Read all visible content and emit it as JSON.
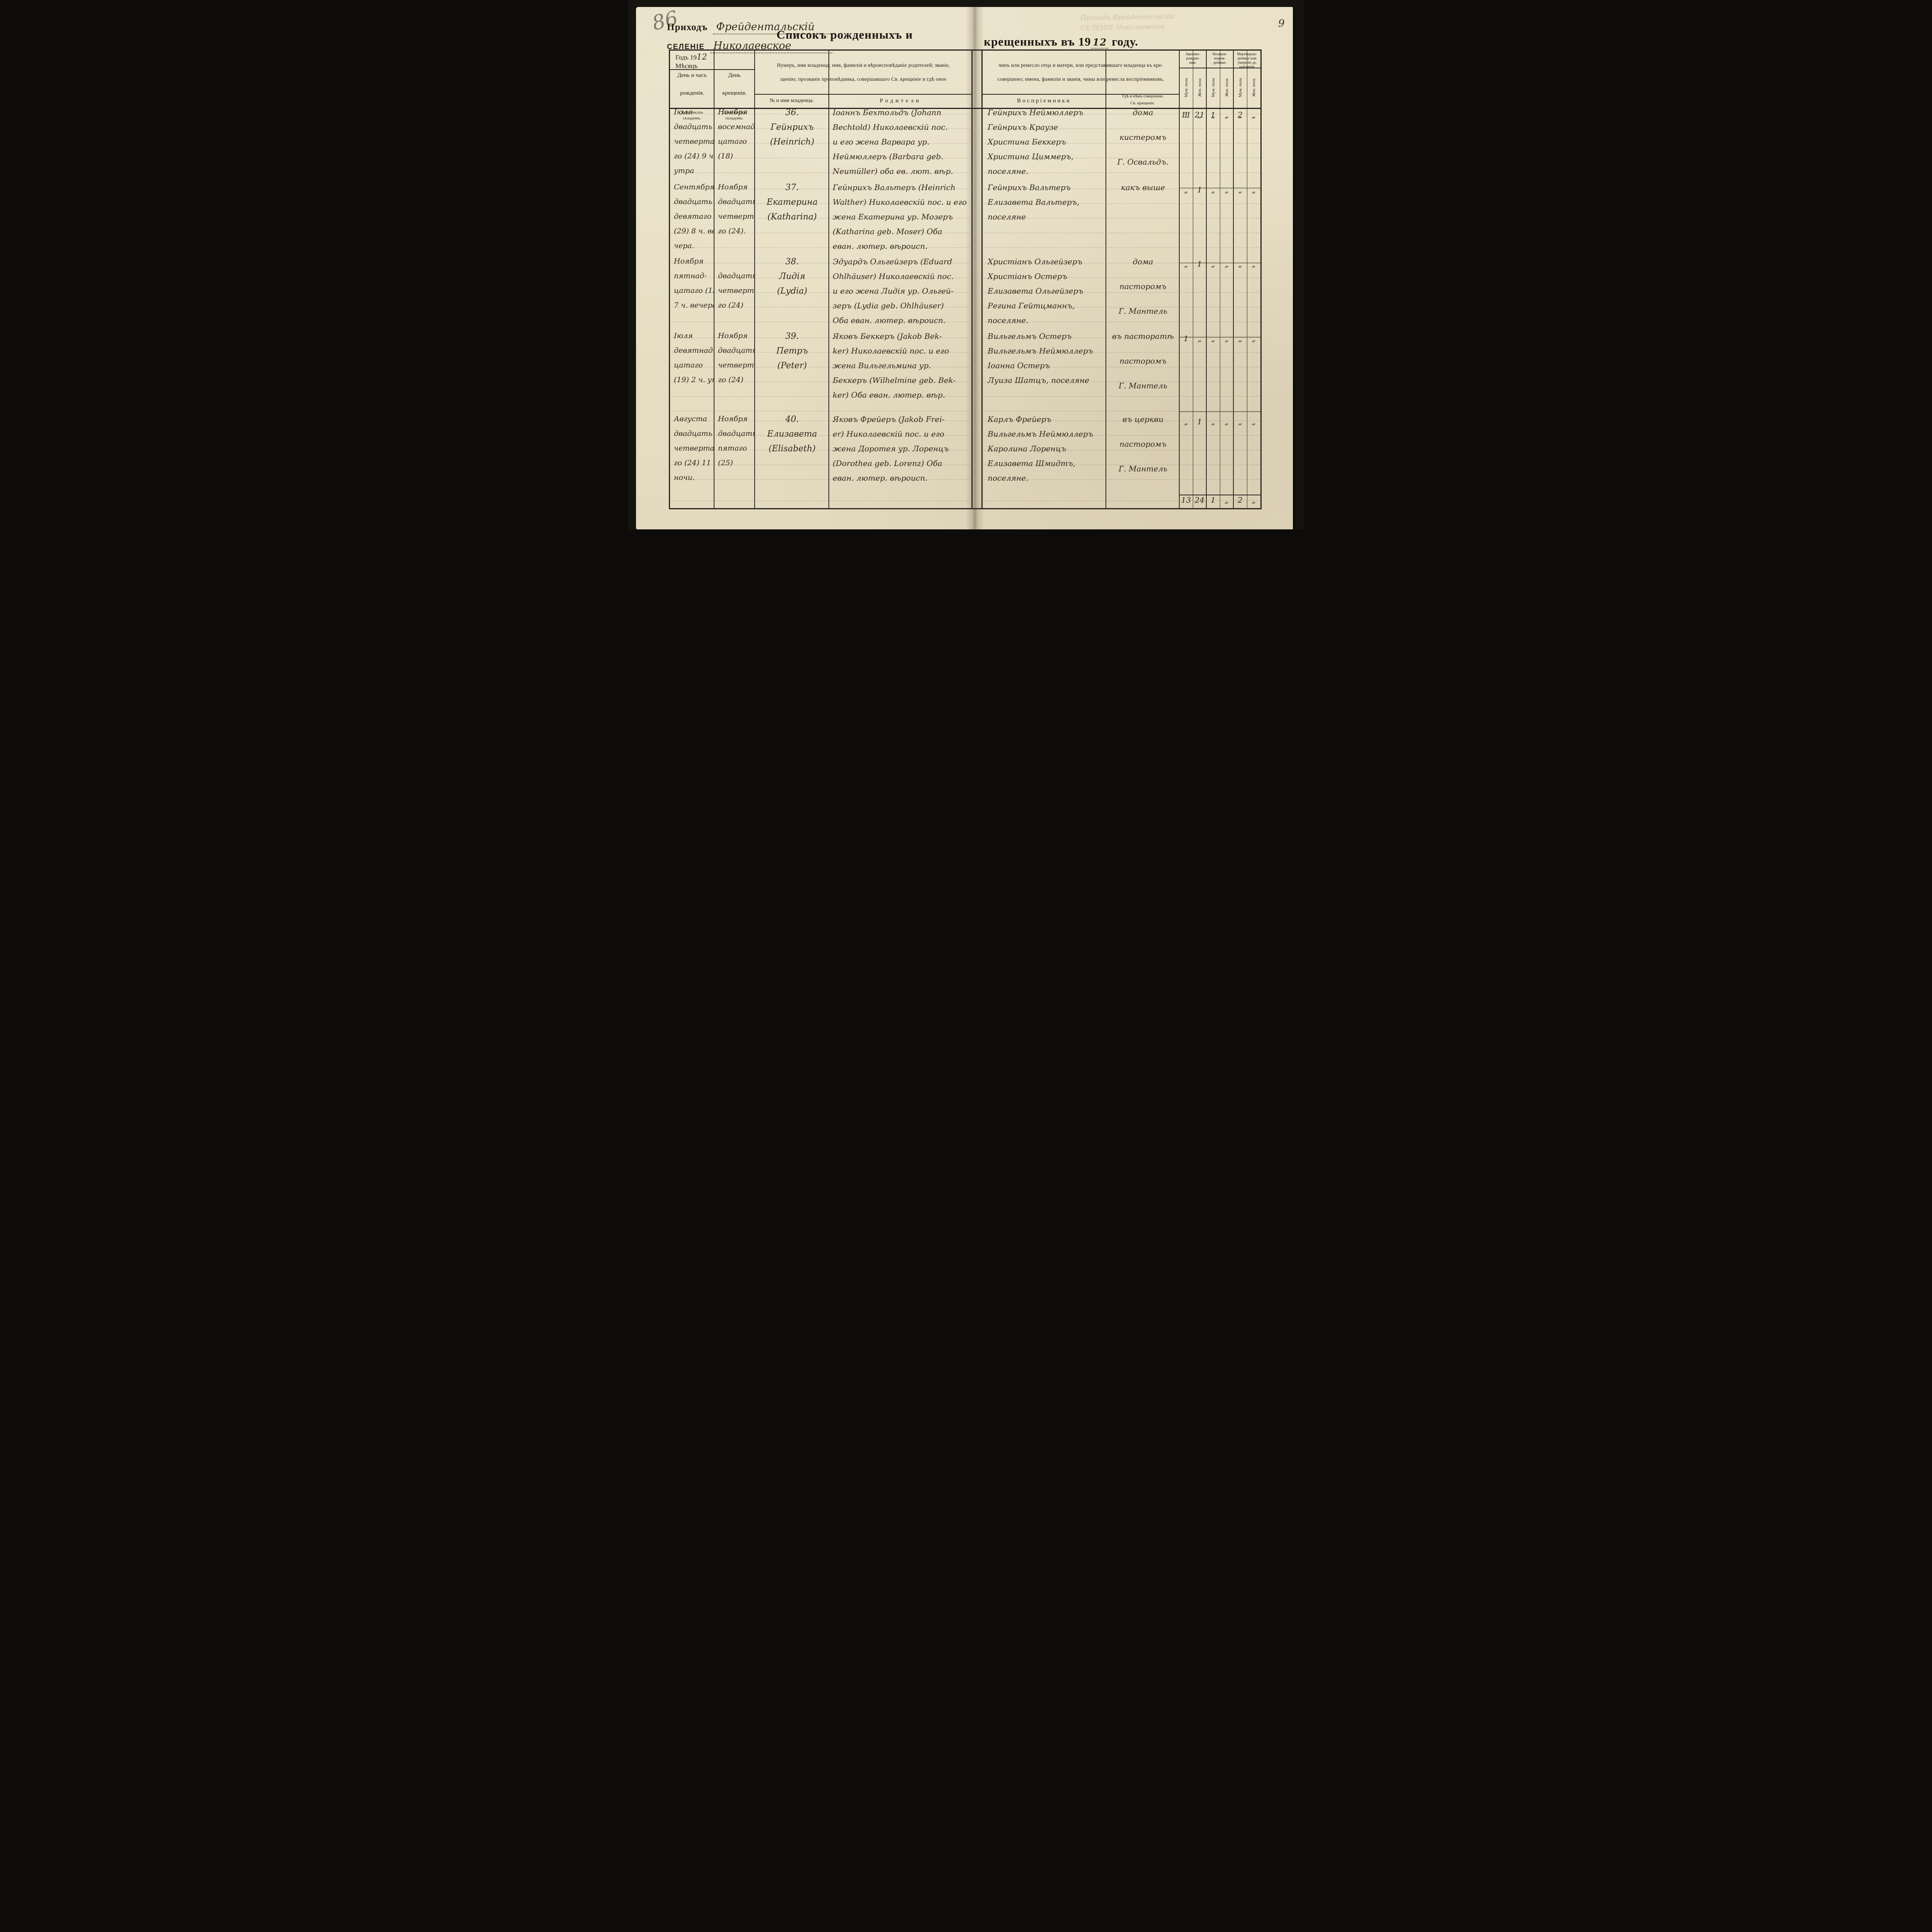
{
  "page": {
    "pencil_note": "86",
    "page_number": "9",
    "parish_label": "Приходъ",
    "parish_value": "Фрейдентальскій",
    "village_label": "СЕЛЕНІЕ",
    "village_value": "Николаевское",
    "title_left": "Списокъ рожденныхъ и",
    "title_right_pre": "крещенныхъ въ 19",
    "title_year": "12",
    "title_right_post": "году.",
    "ghost_lines": [
      "Приходъ Фрейдентальскій",
      "СЕЛЕНІЕ Николаевское"
    ]
  },
  "table": {
    "year_label": "Годъ 19",
    "year_value": "12",
    "month_label": "Мѣсяцъ",
    "col_birth": [
      "День и часъ",
      "рожденія."
    ],
    "col_baptism": [
      "День",
      "крещенія."
    ],
    "header_left_line1": "Нумеръ, имя младенца; имя, фамилія и вѣроисповѣданіе родителей; званіе,",
    "header_left_line2": "щенію; прозваніе проповѣдника, совершавшаго Св. крещеніе и гдѣ оное",
    "header_right_line1": "чинъ или ремесло отца и матери, или представившаго младенца къ кре-",
    "header_right_line2": "совершено; имена, фамиліи и званія, чины или ремесла воспріемниковъ.",
    "col_number_name": "№ и имя младенца.",
    "col_parents": "Родители",
    "col_sponsors": "Воспріемники",
    "col_place": [
      "Гдѣ и кѣмъ совершено",
      "Св. крещеніе."
    ],
    "day_note": [
      "День писать",
      "складомъ."
    ],
    "stats_groups": [
      [
        "Законно-",
        "рожден-",
        "ные."
      ],
      [
        "Незакон-",
        "норож-",
        "денные."
      ],
      [
        "Мертворож-",
        "денные или",
        "умершіе до",
        "крещенія"
      ]
    ],
    "sex_labels": [
      "Муж. пола",
      "Жен. пола",
      "Муж. пола",
      "Жен. пола",
      "Муж. пола",
      "Жен. пола"
    ],
    "carryover": [
      "11",
      "21",
      "1",
      "„",
      "2",
      "„"
    ],
    "totals": [
      "13",
      "24",
      "1",
      "„",
      "2",
      "„"
    ]
  },
  "entries": [
    {
      "birth_lines": [
        "Іюля",
        "двадцать",
        "четверта-",
        "го (24) 9 ч.",
        "утра"
      ],
      "baptism_lines": [
        "Ноября",
        "восемнад-",
        "цатаго",
        "(18)"
      ],
      "name_lines": [
        "36.",
        "Гейнрихъ",
        "(Heinrich)"
      ],
      "parents_lines": [
        "Іоаннъ Бехтольдъ (Johann",
        "Bechtold) Николаевскій пос.",
        "и его жена Варвара ур.",
        "Неймюллеръ (Barbara geb.",
        "Neumüller) оба ев. лют. вѣр."
      ],
      "sponsors_lines": [
        "Гейнрихъ Неймюллеръ",
        "Гейнрихъ Краузе",
        "Христина Беккеръ",
        "Христина Циммеръ,",
        "поселяне."
      ],
      "place_lines": [
        "дома",
        "кистеромъ",
        "Г. Освальдъ."
      ],
      "stats": [
        "1",
        "„",
        "„",
        "„",
        "„",
        "„"
      ]
    },
    {
      "birth_lines": [
        "Сентября",
        "двадцать",
        "девятаго",
        "(29) 8 ч. ве-",
        "чера."
      ],
      "baptism_lines": [
        "Ноября",
        "двадцать",
        "четверта-",
        "го (24)."
      ],
      "name_lines": [
        "37.",
        "Екатерина",
        "(Katharina)"
      ],
      "parents_lines": [
        "Гейнрихъ Вальтеръ (Heinrich",
        "Walther) Николаевскій пос. и его",
        "жена Екатерина ур. Мозеръ",
        "(Katharina geb. Moser) Оба",
        "еван. лютер. вѣроисп."
      ],
      "sponsors_lines": [
        "Гейнрихъ Вальтеръ",
        "Елизавета Вальтеръ,",
        "поселяне"
      ],
      "place_lines": [
        "какъ выше"
      ],
      "stats": [
        "„",
        "1",
        "„",
        "„",
        "„",
        "„"
      ]
    },
    {
      "birth_lines": [
        "Ноября",
        "пятнад-",
        "цатаго (15)",
        "7 ч. вечера"
      ],
      "baptism_lines": [
        "",
        "двадцать",
        "четверта-",
        "го (24)"
      ],
      "name_lines": [
        "38.",
        "Лидія",
        "(Lydia)"
      ],
      "parents_lines": [
        "Эдуардъ Ольгейзеръ (Eduard",
        "Ohlhäuser) Николаевскій пос.",
        "и его жена Лидія ур. Ольгей-",
        "зеръ (Lydia geb. Ohlhäuser)",
        "Оба еван. лютер. вѣроисп."
      ],
      "sponsors_lines": [
        "Христіанъ Ольгейзеръ",
        "Христіанъ Остеръ",
        "Елизавета Ольгейзеръ",
        "Регина Гейтцманнъ,",
        "поселяне."
      ],
      "place_lines": [
        "дома",
        "пасторомъ",
        "Г. Мантель"
      ],
      "stats": [
        "„",
        "1",
        "„",
        "„",
        "„",
        "„"
      ]
    },
    {
      "birth_lines": [
        "Іюля",
        "девятнад-",
        "цатаго",
        "(19) 2 ч. утра"
      ],
      "baptism_lines": [
        "Ноября",
        "двадцать",
        "четверта-",
        "го (24)"
      ],
      "name_lines": [
        "39.",
        "Петръ",
        "(Peter)"
      ],
      "parents_lines": [
        "Яковъ Беккеръ (Jakob Bek-",
        "ker) Николаевскій пос. и его",
        "жена Вильгельмина ур.",
        "Беккеръ (Wilhelmine geb. Bek-",
        "ker) Оба еван. лютер. вѣр."
      ],
      "sponsors_lines": [
        "Вильгельмъ Остеръ",
        "Вильгельмъ Неймюллеръ",
        "Іоанна Остеръ",
        "Луиза Шатцъ, поселяне"
      ],
      "place_lines": [
        "въ пасторатѣ",
        "пасторомъ",
        "Г. Мантель"
      ],
      "stats": [
        "1",
        "„",
        "„",
        "„",
        "„",
        "„"
      ]
    },
    {
      "birth_lines": [
        "Августа",
        "двадцать",
        "четверта-",
        "го (24) 11 ч.",
        "ночи."
      ],
      "baptism_lines": [
        "Ноября",
        "двадцать",
        "пятаго",
        "(25)"
      ],
      "name_lines": [
        "40.",
        "Елизавета",
        "(Elisabeth)"
      ],
      "parents_lines": [
        "Яковъ Фрейеръ (Jakob Frei-",
        "er) Николаевскій пос. и его",
        "жена Доротея ур. Лоренцъ",
        "(Dorothea geb. Lorenz) Оба",
        "еван. лютер. вѣроисп."
      ],
      "sponsors_lines": [
        "Карлъ Фрейеръ",
        "Вильгельмъ Неймюллеръ",
        "Каролина Лоренцъ",
        "Елизавета Шмидтъ,",
        "поселяне."
      ],
      "place_lines": [
        "въ церкви",
        "пасторомъ",
        "Г. Мантель"
      ],
      "stats": [
        "„",
        "1",
        "„",
        "„",
        "„",
        "„"
      ]
    }
  ]
}
